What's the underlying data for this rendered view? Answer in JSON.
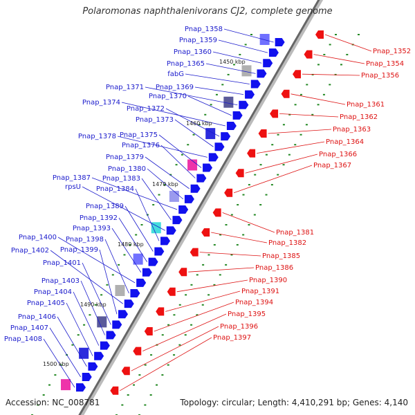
{
  "title": "Polaromonas naphthalenivorans CJ2, complete genome",
  "footer": {
    "accession": "Accession: NC_008781",
    "summary": "Topology: circular; Length: 4,410,291 bp; Genes: 4,140"
  },
  "colors": {
    "left_label": "#1a1acc",
    "right_label": "#dd1111",
    "backbone": "#666666",
    "forward_arrow": "#1111ee",
    "reverse_arrow": "#ee1111",
    "tick_dot": "#228822"
  },
  "scale_labels": [
    "1450 kbp",
    "1460 kbp",
    "1470 kbp",
    "1480 kbp",
    "1490 kbp",
    "1500 kbp"
  ],
  "left_genes": [
    "Pnap_1358",
    "Pnap_1359",
    "Pnap_1360",
    "Pnap_1365",
    "fabG",
    "Pnap_1369",
    "Pnap_1371",
    "Pnap_1370",
    "Pnap_1374",
    "Pnap_1372",
    "Pnap_1373",
    "Pnap_1378",
    "Pnap_1375",
    "Pnap_1376",
    "Pnap_1379",
    "Pnap_1380",
    "Pnap_1387",
    "Pnap_1383",
    "rpsU",
    "Pnap_1384",
    "Pnap_1389",
    "Pnap_1392",
    "Pnap_1393",
    "Pnap_1400",
    "Pnap_1398",
    "Pnap_1402",
    "Pnap_1399",
    "Pnap_1401",
    "Pnap_1403",
    "Pnap_1404",
    "Pnap_1405",
    "Pnap_1406",
    "Pnap_1407",
    "Pnap_1408"
  ],
  "right_genes": [
    "Pnap_1352",
    "Pnap_1354",
    "Pnap_1356",
    "Pnap_1361",
    "Pnap_1362",
    "Pnap_1363",
    "Pnap_1364",
    "Pnap_1366",
    "Pnap_1367",
    "Pnap_1381",
    "Pnap_1382",
    "Pnap_1385",
    "Pnap_1386",
    "Pnap_1390",
    "Pnap_1391",
    "Pnap_1394",
    "Pnap_1395",
    "Pnap_1396",
    "Pnap_1397"
  ]
}
